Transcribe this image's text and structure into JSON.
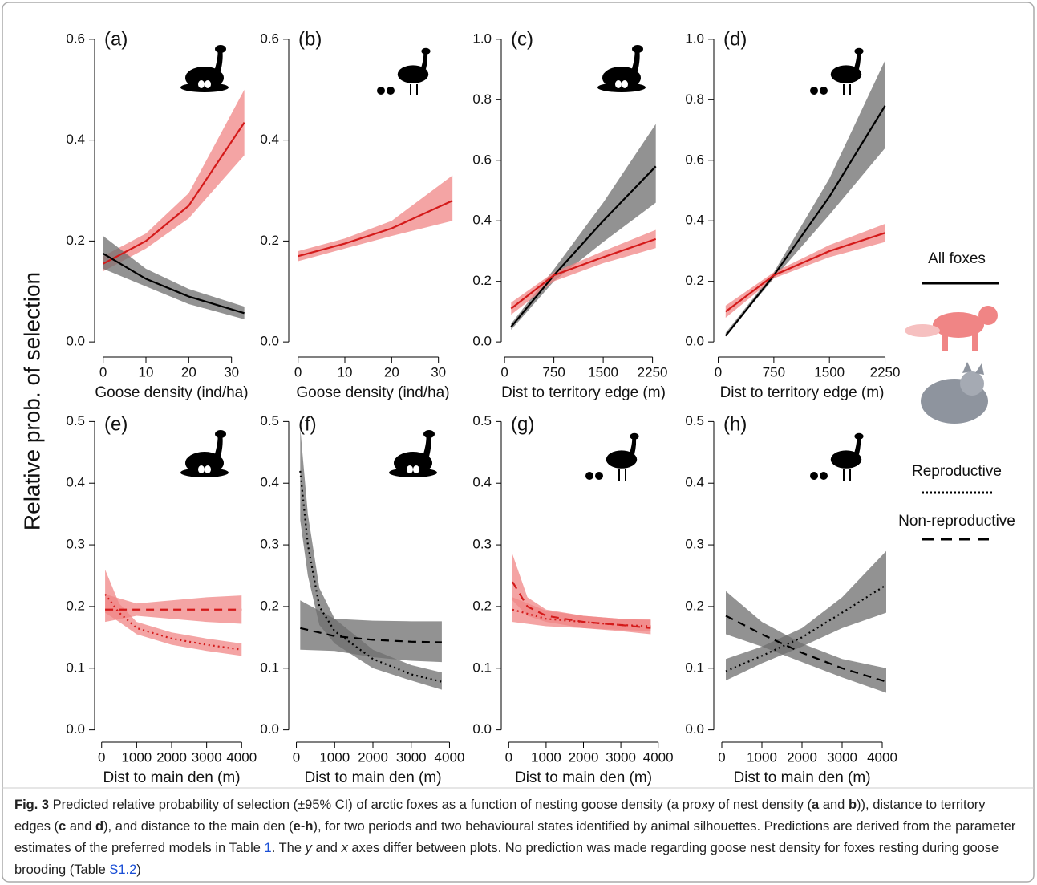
{
  "chart_data": [
    {
      "type": "line",
      "panel_label": "(a)",
      "xlabel": "Goose density (ind/ha)",
      "xlim": [
        -2,
        34
      ],
      "xticks": [
        0,
        10,
        20,
        30
      ],
      "ylim": [
        -0.03,
        0.63
      ],
      "yticks": [
        {
          "value": 0,
          "label": "0.0"
        },
        0.2,
        0.4,
        0.6
      ],
      "series": [
        {
          "color": "#d41a1a",
          "band_color": "#f08585",
          "dash": "solid",
          "x": [
            0,
            10,
            20,
            33
          ],
          "values": [
            0.155,
            0.2,
            0.27,
            0.435
          ],
          "lower": [
            0.14,
            0.185,
            0.245,
            0.37
          ],
          "upper": [
            0.17,
            0.215,
            0.295,
            0.5
          ]
        },
        {
          "color": "#000000",
          "band_color": "#6e6e6e",
          "dash": "solid",
          "x": [
            0,
            10,
            20,
            33
          ],
          "values": [
            0.175,
            0.125,
            0.09,
            0.057
          ],
          "lower": [
            0.145,
            0.11,
            0.075,
            0.045
          ],
          "upper": [
            0.21,
            0.145,
            0.105,
            0.07
          ]
        }
      ]
    },
    {
      "type": "line",
      "panel_label": "(b)",
      "xlabel": "Goose density (ind/ha)",
      "xlim": [
        -2,
        34
      ],
      "xticks": [
        0,
        10,
        20,
        30
      ],
      "ylim": [
        -0.03,
        0.63
      ],
      "yticks": [
        {
          "value": 0,
          "label": "0.0"
        },
        0.2,
        0.4,
        0.6
      ],
      "series": [
        {
          "color": "#d41a1a",
          "band_color": "#f08585",
          "dash": "solid",
          "x": [
            0,
            10,
            20,
            33
          ],
          "values": [
            0.17,
            0.195,
            0.225,
            0.28
          ],
          "lower": [
            0.16,
            0.185,
            0.21,
            0.24
          ],
          "upper": [
            0.18,
            0.205,
            0.24,
            0.33
          ]
        }
      ]
    },
    {
      "type": "line",
      "panel_label": "(c)",
      "xlabel": "Dist to territory edge (m)",
      "xlim": [
        -50,
        2450
      ],
      "xticks": [
        0,
        750,
        1500,
        2250
      ],
      "ylim": [
        -0.05,
        1.05
      ],
      "yticks": [
        {
          "value": 0,
          "label": "0.0"
        },
        0.2,
        0.4,
        0.6,
        0.8,
        {
          "value": 1,
          "label": "1.0"
        }
      ],
      "series": [
        {
          "color": "#000000",
          "band_color": "#6e6e6e",
          "dash": "solid",
          "x": [
            100,
            750,
            1500,
            2300
          ],
          "values": [
            0.05,
            0.22,
            0.4,
            0.58
          ],
          "lower": [
            0.04,
            0.2,
            0.33,
            0.46
          ],
          "upper": [
            0.06,
            0.24,
            0.46,
            0.72
          ]
        },
        {
          "color": "#d41a1a",
          "band_color": "#f08585",
          "dash": "solid",
          "x": [
            100,
            750,
            1500,
            2300
          ],
          "values": [
            0.11,
            0.22,
            0.28,
            0.34
          ],
          "lower": [
            0.09,
            0.2,
            0.26,
            0.31
          ],
          "upper": [
            0.13,
            0.23,
            0.3,
            0.37
          ]
        }
      ]
    },
    {
      "type": "line",
      "panel_label": "(d)",
      "xlabel": "Dist to territory edge (m)",
      "xlim": [
        -60,
        2320
      ],
      "xticks": [
        0,
        750,
        1500,
        2250
      ],
      "ylim": [
        -0.05,
        1.05
      ],
      "yticks": [
        {
          "value": 0,
          "label": "0.0"
        },
        0.2,
        0.4,
        0.6,
        0.8,
        {
          "value": 1,
          "label": "1.0"
        }
      ],
      "series": [
        {
          "color": "#000000",
          "band_color": "#6e6e6e",
          "dash": "solid",
          "x": [
            100,
            750,
            1500,
            2250
          ],
          "values": [
            0.02,
            0.22,
            0.48,
            0.78
          ],
          "lower": [
            0.02,
            0.21,
            0.42,
            0.64
          ],
          "upper": [
            0.03,
            0.23,
            0.54,
            0.93
          ]
        },
        {
          "color": "#d41a1a",
          "band_color": "#f08585",
          "dash": "solid",
          "x": [
            100,
            750,
            1500,
            2250
          ],
          "values": [
            0.1,
            0.22,
            0.3,
            0.36
          ],
          "lower": [
            0.08,
            0.21,
            0.28,
            0.33
          ],
          "upper": [
            0.12,
            0.23,
            0.32,
            0.39
          ]
        }
      ]
    },
    {
      "type": "line",
      "panel_label": "(e)",
      "xlabel": "Dist to main den (m)",
      "xlim": [
        -200,
        4200
      ],
      "xticks": [
        0,
        1000,
        2000,
        3000,
        4000
      ],
      "ylim": [
        -0.02,
        0.52
      ],
      "yticks": [
        {
          "value": 0,
          "label": "0.0"
        },
        0.1,
        0.2,
        0.3,
        0.4,
        0.5
      ],
      "series": [
        {
          "color": "#d41a1a",
          "band_color": "#f08585",
          "dash": "dashed",
          "x": [
            100,
            1000,
            2000,
            3000,
            4000
          ],
          "values": [
            0.195,
            0.195,
            0.195,
            0.195,
            0.195
          ],
          "lower": [
            0.175,
            0.185,
            0.18,
            0.175,
            0.172
          ],
          "upper": [
            0.22,
            0.205,
            0.21,
            0.215,
            0.218
          ]
        },
        {
          "color": "#d41a1a",
          "band_color": "#f08585",
          "dash": "dotted",
          "x": [
            100,
            500,
            1000,
            2000,
            3000,
            4000
          ],
          "values": [
            0.22,
            0.19,
            0.165,
            0.148,
            0.138,
            0.13
          ],
          "lower": [
            0.19,
            0.175,
            0.155,
            0.138,
            0.128,
            0.12
          ],
          "upper": [
            0.26,
            0.205,
            0.175,
            0.158,
            0.148,
            0.14
          ]
        }
      ]
    },
    {
      "type": "line",
      "panel_label": "(f)",
      "xlabel": "Dist to main den (m)",
      "xlim": [
        -200,
        4200
      ],
      "xticks": [
        0,
        1000,
        2000,
        3000,
        4000
      ],
      "ylim": [
        -0.02,
        0.52
      ],
      "yticks": [
        {
          "value": 0,
          "label": "0.0"
        },
        0.1,
        0.2,
        0.3,
        0.4,
        0.5
      ],
      "series": [
        {
          "color": "#000000",
          "band_color": "#6e6e6e",
          "dash": "dotted",
          "x": [
            100,
            300,
            600,
            1000,
            2000,
            3000,
            3800
          ],
          "values": [
            0.42,
            0.3,
            0.2,
            0.16,
            0.115,
            0.09,
            0.078
          ],
          "lower": [
            0.34,
            0.25,
            0.17,
            0.14,
            0.1,
            0.08,
            0.065
          ],
          "upper": [
            0.49,
            0.35,
            0.23,
            0.18,
            0.13,
            0.105,
            0.093
          ]
        },
        {
          "color": "#000000",
          "band_color": "#6e6e6e",
          "dash": "dashed",
          "x": [
            100,
            1000,
            2000,
            3000,
            3800
          ],
          "values": [
            0.165,
            0.152,
            0.146,
            0.143,
            0.142
          ],
          "lower": [
            0.13,
            0.128,
            0.118,
            0.112,
            0.11
          ],
          "upper": [
            0.21,
            0.18,
            0.177,
            0.176,
            0.176
          ]
        }
      ]
    },
    {
      "type": "line",
      "panel_label": "(g)",
      "xlabel": "Dist to main den (m)",
      "xlim": [
        -200,
        4200
      ],
      "xticks": [
        0,
        1000,
        2000,
        3000,
        4000
      ],
      "ylim": [
        -0.02,
        0.52
      ],
      "yticks": [
        {
          "value": 0,
          "label": "0.0"
        },
        0.1,
        0.2,
        0.3,
        0.4,
        0.5
      ],
      "series": [
        {
          "color": "#d41a1a",
          "band_color": "#f08585",
          "dash": "dashed",
          "x": [
            100,
            500,
            1000,
            2000,
            3000,
            3800
          ],
          "values": [
            0.24,
            0.2,
            0.185,
            0.175,
            0.17,
            0.165
          ],
          "lower": [
            0.21,
            0.185,
            0.175,
            0.165,
            0.16,
            0.155
          ],
          "upper": [
            0.285,
            0.215,
            0.195,
            0.185,
            0.18,
            0.18
          ]
        },
        {
          "color": "#d41a1a",
          "band_color": "#f08585",
          "dash": "dotted",
          "x": [
            100,
            1000,
            2000,
            3000,
            3800
          ],
          "values": [
            0.195,
            0.18,
            0.175,
            0.17,
            0.168
          ],
          "lower": [
            0.175,
            0.168,
            0.165,
            0.162,
            0.16
          ],
          "upper": [
            0.215,
            0.193,
            0.185,
            0.18,
            0.178
          ]
        }
      ]
    },
    {
      "type": "line",
      "panel_label": "(h)",
      "xlabel": "Dist to main den (m)",
      "xlim": [
        -200,
        4200
      ],
      "xticks": [
        0,
        1000,
        2000,
        3000,
        4000
      ],
      "ylim": [
        -0.02,
        0.52
      ],
      "yticks": [
        {
          "value": 0,
          "label": "0.0"
        },
        0.1,
        0.2,
        0.3,
        0.4,
        0.5
      ],
      "series": [
        {
          "color": "#000000",
          "band_color": "#6e6e6e",
          "dash": "dashed",
          "x": [
            100,
            1000,
            2000,
            3000,
            4100
          ],
          "values": [
            0.185,
            0.155,
            0.125,
            0.1,
            0.078
          ],
          "lower": [
            0.155,
            0.135,
            0.11,
            0.085,
            0.06
          ],
          "upper": [
            0.225,
            0.175,
            0.14,
            0.115,
            0.1
          ]
        },
        {
          "color": "#000000",
          "band_color": "#6e6e6e",
          "dash": "dotted",
          "x": [
            100,
            1000,
            2000,
            3000,
            4100
          ],
          "values": [
            0.095,
            0.12,
            0.15,
            0.19,
            0.235
          ],
          "lower": [
            0.08,
            0.108,
            0.135,
            0.165,
            0.19
          ],
          "upper": [
            0.115,
            0.135,
            0.165,
            0.215,
            0.29
          ]
        }
      ]
    }
  ],
  "ylabel": "Relative prob. of selection",
  "legend": {
    "all": "All foxes",
    "reproductive": "Reproductive",
    "non_reproductive": "Non-reproductive"
  },
  "caption": [
    {
      "text": "Fig. 3",
      "style": "bold"
    },
    {
      "text": " Predicted relative probability of selection (±95% CI) of arctic foxes as a function of nesting goose density (a proxy of nest density (",
      "style": "plain"
    },
    {
      "text": "a",
      "style": "bold"
    },
    {
      "text": " and ",
      "style": "plain"
    },
    {
      "text": "b",
      "style": "bold"
    },
    {
      "text": ")), distance to territory edges (",
      "style": "plain"
    },
    {
      "text": "c",
      "style": "bold"
    },
    {
      "text": " and ",
      "style": "plain"
    },
    {
      "text": "d",
      "style": "bold"
    },
    {
      "text": "), and distance to the main den (",
      "style": "plain"
    },
    {
      "text": "e",
      "style": "bold"
    },
    {
      "text": "-",
      "style": "plain"
    },
    {
      "text": "h",
      "style": "bold"
    },
    {
      "text": "), for two periods and two behavioural states identified by animal silhouettes. Predictions are derived from the parameter estimates of the preferred models in Table ",
      "style": "plain"
    },
    {
      "text": "1",
      "style": "link"
    },
    {
      "text": ". The ",
      "style": "plain"
    },
    {
      "text": "y",
      "style": "italic"
    },
    {
      "text": " and ",
      "style": "plain"
    },
    {
      "text": "x",
      "style": "italic"
    },
    {
      "text": " axes differ between plots. No prediction was made regarding goose nest density for foxes resting during goose brooding (Table ",
      "style": "plain"
    },
    {
      "text": "S1.2",
      "style": "link"
    },
    {
      "text": ")",
      "style": "plain"
    }
  ]
}
